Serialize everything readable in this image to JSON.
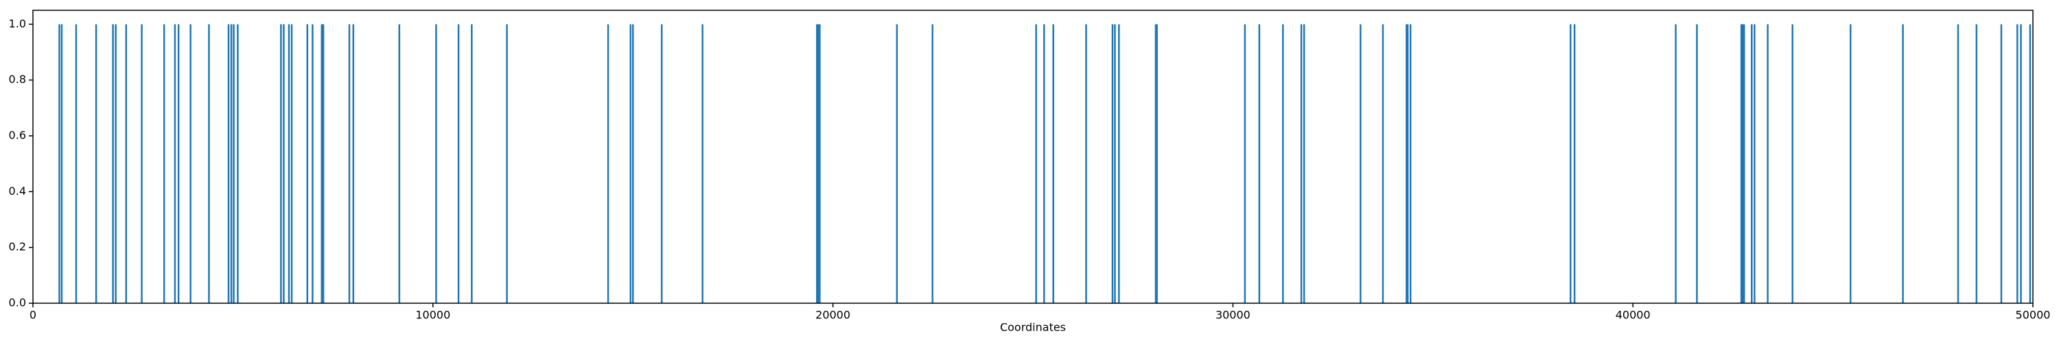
{
  "chart_data": {
    "type": "vlines",
    "xlabel": "Coordinates",
    "color": "#1f77b4",
    "x": [
      660,
      720,
      1080,
      1580,
      2000,
      2070,
      2330,
      2720,
      3280,
      3550,
      3640,
      3940,
      4400,
      4890,
      4960,
      5020,
      5120,
      6200,
      6270,
      6400,
      6470,
      6860,
      6990,
      7220,
      7260,
      7910,
      8010,
      9160,
      10080,
      10640,
      10970,
      11850,
      14380,
      14940,
      15000,
      15720,
      16740,
      19600,
      19630,
      19670,
      21600,
      22490,
      25080,
      25280,
      25510,
      26330,
      26990,
      27050,
      27150,
      28070,
      28100,
      30300,
      30660,
      31250,
      31710,
      31780,
      33190,
      33750,
      34340,
      34370,
      34440,
      38440,
      38540,
      41070,
      41600,
      42710,
      42740,
      42780,
      42970,
      43040,
      43370,
      43990,
      45440,
      46750,
      48130,
      48590,
      49210,
      49610,
      49700,
      49930
    ],
    "values": [
      1,
      1,
      1,
      1,
      1,
      1,
      1,
      1,
      1,
      1,
      1,
      1,
      1,
      1,
      1,
      1,
      1,
      1,
      1,
      1,
      1,
      1,
      1,
      1,
      1,
      1,
      1,
      1,
      1,
      1,
      1,
      1,
      1,
      1,
      1,
      1,
      1,
      1,
      1,
      1,
      1,
      1,
      1,
      1,
      1,
      1,
      1,
      1,
      1,
      1,
      1,
      1,
      1,
      1,
      1,
      1,
      1,
      1,
      1,
      1,
      1,
      1,
      1,
      1,
      1,
      1,
      1,
      1,
      1,
      1,
      1,
      1,
      1,
      1,
      1,
      1,
      1,
      1,
      1,
      1
    ],
    "xlim": [
      0,
      50000
    ],
    "xticks": [
      0,
      10000,
      20000,
      30000,
      40000,
      50000
    ],
    "ylim": [
      0,
      1.05
    ],
    "yticks": [
      {
        "value": 0,
        "label": "0.0"
      },
      0.2,
      0.4,
      0.6,
      0.8,
      {
        "value": 1,
        "label": "1.0"
      }
    ]
  }
}
